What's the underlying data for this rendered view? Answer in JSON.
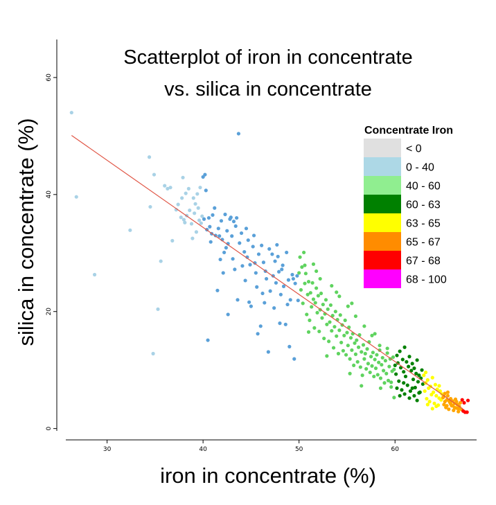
{
  "chart_data": {
    "type": "scatter",
    "title_lines": [
      "Scatterplot of iron in concentrate",
      "vs. silica in concentrate"
    ],
    "xlabel": "iron in concentrate (%)",
    "ylabel": "silica in concentrate (%)",
    "xlim": [
      25.7,
      68.5
    ],
    "ylim": [
      -0.4,
      66.5
    ],
    "x_ticks": [
      30,
      40,
      50,
      60
    ],
    "y_ticks": [
      0,
      20,
      40,
      60
    ],
    "grid": false,
    "legend": {
      "title": "Concentrate Iron",
      "placement": "top-right",
      "entries": [
        {
          "label": "< 0",
          "color": "#e0e0e0"
        },
        {
          "label": "0 - 40",
          "color": "#add8e6"
        },
        {
          "label": "40 - 60",
          "color": "#90ee90"
        },
        {
          "label": "60 - 63",
          "color": "#008000"
        },
        {
          "label": "63 - 65",
          "color": "#ffff00"
        },
        {
          "label": "65 - 67",
          "color": "#ff8c00"
        },
        {
          "label": "67 - 68",
          "color": "#ff0000"
        },
        {
          "label": "68 - 100",
          "color": "#ff00ff"
        }
      ]
    },
    "point_colors": {
      "0-40": "#a9d2e6",
      "40-50": "#5aa0d8",
      "50-60": "#5fd35f",
      "60-63": "#008000",
      "63-65": "#ffff00",
      "65-67": "#ffa500",
      "67-68": "#ff0000"
    },
    "trend_line": {
      "color": "#e05545",
      "x": [
        26.3,
        67.1
      ],
      "y": [
        50.1,
        3.3
      ]
    },
    "points": [
      [
        26.3,
        54.0
      ],
      [
        26.8,
        39.6
      ],
      [
        28.7,
        26.3
      ],
      [
        32.4,
        33.9
      ],
      [
        34.4,
        46.4
      ],
      [
        34.5,
        37.9
      ],
      [
        34.8,
        12.8
      ],
      [
        35.3,
        20.4
      ],
      [
        35.6,
        28.6
      ],
      [
        34.9,
        43.4
      ],
      [
        36.0,
        41.5
      ],
      [
        36.3,
        41.0
      ],
      [
        36.6,
        41.2
      ],
      [
        36.8,
        32.1
      ],
      [
        37.4,
        38.3
      ],
      [
        37.7,
        36.1
      ],
      [
        37.8,
        39.4
      ],
      [
        37.9,
        42.9
      ],
      [
        38.0,
        35.7
      ],
      [
        38.1,
        35.2
      ],
      [
        38.2,
        40.2
      ],
      [
        38.3,
        36.4
      ],
      [
        38.5,
        41.0
      ],
      [
        38.8,
        35.0
      ],
      [
        38.9,
        32.5
      ],
      [
        39.0,
        39.4
      ],
      [
        39.1,
        36.8
      ],
      [
        39.2,
        38.4
      ],
      [
        39.5,
        37.7
      ],
      [
        39.6,
        35.6
      ],
      [
        39.8,
        35.1
      ],
      [
        39.9,
        36.3
      ],
      [
        39.4,
        40.1
      ],
      [
        38.6,
        37.3
      ],
      [
        37.2,
        37.4
      ],
      [
        39.7,
        41.2
      ],
      [
        39.3,
        33.6
      ],
      [
        40.1,
        35.8
      ],
      [
        40.2,
        43.4
      ],
      [
        40.3,
        40.7
      ],
      [
        40.4,
        34.0
      ],
      [
        40.5,
        15.1
      ],
      [
        40.8,
        31.9
      ],
      [
        41.0,
        36.5
      ],
      [
        41.2,
        37.7
      ],
      [
        41.3,
        33.0
      ],
      [
        41.5,
        23.6
      ],
      [
        41.6,
        34.2
      ],
      [
        41.8,
        28.9
      ],
      [
        41.9,
        35.5
      ],
      [
        42.0,
        32.3
      ],
      [
        42.1,
        26.6
      ],
      [
        42.2,
        30.1
      ],
      [
        42.3,
        36.6
      ],
      [
        42.5,
        33.8
      ],
      [
        42.6,
        31.6
      ],
      [
        42.8,
        35.8
      ],
      [
        43.0,
        32.9
      ],
      [
        43.1,
        29.0
      ],
      [
        43.3,
        27.2
      ],
      [
        43.4,
        34.6
      ],
      [
        43.5,
        36.0
      ],
      [
        43.7,
        50.4
      ],
      [
        43.8,
        31.7
      ],
      [
        44.0,
        33.4
      ],
      [
        44.1,
        27.8
      ],
      [
        44.3,
        30.2
      ],
      [
        44.4,
        25.3
      ],
      [
        44.5,
        34.2
      ],
      [
        44.7,
        32.2
      ],
      [
        44.9,
        28.0
      ],
      [
        45.0,
        20.9
      ],
      [
        45.2,
        31.1
      ],
      [
        45.3,
        33.0
      ],
      [
        45.5,
        26.6
      ],
      [
        45.6,
        24.2
      ],
      [
        45.8,
        29.8
      ],
      [
        46.0,
        17.5
      ],
      [
        46.1,
        31.3
      ],
      [
        46.3,
        28.4
      ],
      [
        46.4,
        21.5
      ],
      [
        46.6,
        25.6
      ],
      [
        46.8,
        13.1
      ],
      [
        46.9,
        30.7
      ],
      [
        47.0,
        23.5
      ],
      [
        47.2,
        29.8
      ],
      [
        47.3,
        26.1
      ],
      [
        47.5,
        28.6
      ],
      [
        47.6,
        24.9
      ],
      [
        47.8,
        29.4
      ],
      [
        48.0,
        18.0
      ],
      [
        48.1,
        22.9
      ],
      [
        48.2,
        27.2
      ],
      [
        48.4,
        24.3
      ],
      [
        48.6,
        17.8
      ],
      [
        48.7,
        30.1
      ],
      [
        48.9,
        25.4
      ],
      [
        49.0,
        14.0
      ],
      [
        49.1,
        22.0
      ],
      [
        49.3,
        26.3
      ],
      [
        49.5,
        11.9
      ],
      [
        49.6,
        24.8
      ],
      [
        49.8,
        26.1
      ],
      [
        50.0,
        26.6
      ],
      [
        49.9,
        21.9
      ],
      [
        42.6,
        19.5
      ],
      [
        44.8,
        21.6
      ],
      [
        43.6,
        22.0
      ],
      [
        45.7,
        16.2
      ],
      [
        47.9,
        26.8
      ],
      [
        48.3,
        27.9
      ],
      [
        41.7,
        32.9
      ],
      [
        42.9,
        36.1
      ],
      [
        44.6,
        29.3
      ],
      [
        46.5,
        26.9
      ],
      [
        47.4,
        20.6
      ],
      [
        48.8,
        21.2
      ],
      [
        40.6,
        36.0
      ],
      [
        40.7,
        34.5
      ],
      [
        43.2,
        35.4
      ],
      [
        45.4,
        28.3
      ],
      [
        46.2,
        23.1
      ],
      [
        47.7,
        31.4
      ],
      [
        49.4,
        25.6
      ],
      [
        40.0,
        43.0
      ],
      [
        40.9,
        33.3
      ],
      [
        42.4,
        30.9
      ],
      [
        50.1,
        29.3
      ],
      [
        50.2,
        23.7
      ],
      [
        50.3,
        27.6
      ],
      [
        50.4,
        21.4
      ],
      [
        50.5,
        30.1
      ],
      [
        50.6,
        24.8
      ],
      [
        50.7,
        26.5
      ],
      [
        50.8,
        19.5
      ],
      [
        50.9,
        22.9
      ],
      [
        51.0,
        25.1
      ],
      [
        51.1,
        18.5
      ],
      [
        51.2,
        23.2
      ],
      [
        51.3,
        20.8
      ],
      [
        51.4,
        24.9
      ],
      [
        51.5,
        22.1
      ],
      [
        51.6,
        17.2
      ],
      [
        51.7,
        21.5
      ],
      [
        51.8,
        24.0
      ],
      [
        51.9,
        19.8
      ],
      [
        52.0,
        22.7
      ],
      [
        52.1,
        16.6
      ],
      [
        52.2,
        20.3
      ],
      [
        52.3,
        23.1
      ],
      [
        52.4,
        18.9
      ],
      [
        52.5,
        21.2
      ],
      [
        52.6,
        15.4
      ],
      [
        52.7,
        19.6
      ],
      [
        52.8,
        22.0
      ],
      [
        52.9,
        17.8
      ],
      [
        53.0,
        20.4
      ],
      [
        53.1,
        14.9
      ],
      [
        53.2,
        18.2
      ],
      [
        53.3,
        21.1
      ],
      [
        53.4,
        16.7
      ],
      [
        53.5,
        19.3
      ],
      [
        53.6,
        13.8
      ],
      [
        53.7,
        17.4
      ],
      [
        53.8,
        20.0
      ],
      [
        53.9,
        15.8
      ],
      [
        54.0,
        18.6
      ],
      [
        54.1,
        12.8
      ],
      [
        54.2,
        16.8
      ],
      [
        54.3,
        19.4
      ],
      [
        54.4,
        14.7
      ],
      [
        54.5,
        17.7
      ],
      [
        54.6,
        13.3
      ],
      [
        54.7,
        15.9
      ],
      [
        54.8,
        18.5
      ],
      [
        54.9,
        12.6
      ],
      [
        55.0,
        16.4
      ],
      [
        55.1,
        14.2
      ],
      [
        55.2,
        17.3
      ],
      [
        55.3,
        11.9
      ],
      [
        55.4,
        15.5
      ],
      [
        55.5,
        13.4
      ],
      [
        55.6,
        16.2
      ],
      [
        55.7,
        10.8
      ],
      [
        55.8,
        14.6
      ],
      [
        55.9,
        12.7
      ],
      [
        56.0,
        15.1
      ],
      [
        56.1,
        11.4
      ],
      [
        56.2,
        13.9
      ],
      [
        56.3,
        16.0
      ],
      [
        56.4,
        10.5
      ],
      [
        56.5,
        13.1
      ],
      [
        56.6,
        9.1
      ],
      [
        56.7,
        14.3
      ],
      [
        56.8,
        11.9
      ],
      [
        56.9,
        12.8
      ],
      [
        57.0,
        10.2
      ],
      [
        57.1,
        13.6
      ],
      [
        57.2,
        11.1
      ],
      [
        57.3,
        14.8
      ],
      [
        57.4,
        9.6
      ],
      [
        57.5,
        12.3
      ],
      [
        57.6,
        10.7
      ],
      [
        57.7,
        13.0
      ],
      [
        57.8,
        8.9
      ],
      [
        57.9,
        11.8
      ],
      [
        58.0,
        10.3
      ],
      [
        58.1,
        12.6
      ],
      [
        58.2,
        9.2
      ],
      [
        58.3,
        11.3
      ],
      [
        58.4,
        13.4
      ],
      [
        58.5,
        8.6
      ],
      [
        58.6,
        10.9
      ],
      [
        58.7,
        12.1
      ],
      [
        58.8,
        9.9
      ],
      [
        58.9,
        7.8
      ],
      [
        59.0,
        11.6
      ],
      [
        59.1,
        9.4
      ],
      [
        59.2,
        12.9
      ],
      [
        59.3,
        8.2
      ],
      [
        59.4,
        10.6
      ],
      [
        59.5,
        11.9
      ],
      [
        59.6,
        7.1
      ],
      [
        59.7,
        9.8
      ],
      [
        59.8,
        12.2
      ],
      [
        59.9,
        10.1
      ],
      [
        51.5,
        28.1
      ],
      [
        51.8,
        26.9
      ],
      [
        52.2,
        25.6
      ],
      [
        50.6,
        27.9
      ],
      [
        53.4,
        24.4
      ],
      [
        54.2,
        22.6
      ],
      [
        55.1,
        20.9
      ],
      [
        55.9,
        19.2
      ],
      [
        56.8,
        17.5
      ],
      [
        57.6,
        15.9
      ],
      [
        58.4,
        14.2
      ],
      [
        59.2,
        13.7
      ],
      [
        52.9,
        12.4
      ],
      [
        55.3,
        9.4
      ],
      [
        56.5,
        7.3
      ],
      [
        58.5,
        6.9
      ],
      [
        59.6,
        7.9
      ],
      [
        51.0,
        16.5
      ],
      [
        53.9,
        23.3
      ],
      [
        57.9,
        16.2
      ],
      [
        55.5,
        21.4
      ],
      [
        60.0,
        10.8
      ],
      [
        60.1,
        9.3
      ],
      [
        60.2,
        12.5
      ],
      [
        60.3,
        11.2
      ],
      [
        60.4,
        8.1
      ],
      [
        60.5,
        13.2
      ],
      [
        60.6,
        10.4
      ],
      [
        60.7,
        6.6
      ],
      [
        60.8,
        11.8
      ],
      [
        60.9,
        9.7
      ],
      [
        61.0,
        13.9
      ],
      [
        61.1,
        8.9
      ],
      [
        61.2,
        11.4
      ],
      [
        61.3,
        7.4
      ],
      [
        61.4,
        10.6
      ],
      [
        61.5,
        12.3
      ],
      [
        61.6,
        6.4
      ],
      [
        61.7,
        9.9
      ],
      [
        61.8,
        11.1
      ],
      [
        61.9,
        8.4
      ],
      [
        62.0,
        10.3
      ],
      [
        62.1,
        7.0
      ],
      [
        62.2,
        9.4
      ],
      [
        62.3,
        11.7
      ],
      [
        62.4,
        8.0
      ],
      [
        62.5,
        9.1
      ],
      [
        62.6,
        6.2
      ],
      [
        62.7,
        8.6
      ],
      [
        62.8,
        10.0
      ],
      [
        62.9,
        7.6
      ],
      [
        60.5,
        5.6
      ],
      [
        61.0,
        5.9
      ],
      [
        61.5,
        5.2
      ],
      [
        62.0,
        5.6
      ],
      [
        62.5,
        6.1
      ],
      [
        60.2,
        6.9
      ],
      [
        59.9,
        5.3
      ],
      [
        61.8,
        6.9
      ],
      [
        62.3,
        4.8
      ],
      [
        60.9,
        7.8
      ],
      [
        63.0,
        9.1
      ],
      [
        63.1,
        6.4
      ],
      [
        63.2,
        7.8
      ],
      [
        63.3,
        5.1
      ],
      [
        63.4,
        8.3
      ],
      [
        63.5,
        6.9
      ],
      [
        63.6,
        4.6
      ],
      [
        63.7,
        7.2
      ],
      [
        63.8,
        5.8
      ],
      [
        63.9,
        8.7
      ],
      [
        64.0,
        6.2
      ],
      [
        64.1,
        4.3
      ],
      [
        64.2,
        7.5
      ],
      [
        64.3,
        5.6
      ],
      [
        64.4,
        6.7
      ],
      [
        64.5,
        4.0
      ],
      [
        64.6,
        5.2
      ],
      [
        64.7,
        6.4
      ],
      [
        64.8,
        4.9
      ],
      [
        64.9,
        5.9
      ],
      [
        63.9,
        3.4
      ],
      [
        64.3,
        3.8
      ],
      [
        63.4,
        4.1
      ],
      [
        64.6,
        7.3
      ],
      [
        63.2,
        9.6
      ],
      [
        65.0,
        5.3
      ],
      [
        65.1,
        4.1
      ],
      [
        65.2,
        6.0
      ],
      [
        65.3,
        3.6
      ],
      [
        65.4,
        4.9
      ],
      [
        65.5,
        5.6
      ],
      [
        65.6,
        3.3
      ],
      [
        65.7,
        4.5
      ],
      [
        65.8,
        5.1
      ],
      [
        65.9,
        3.9
      ],
      [
        66.0,
        4.7
      ],
      [
        66.1,
        3.1
      ],
      [
        66.2,
        4.3
      ],
      [
        66.3,
        5.0
      ],
      [
        66.4,
        3.5
      ],
      [
        66.5,
        4.1
      ],
      [
        66.6,
        2.9
      ],
      [
        66.7,
        3.8
      ],
      [
        66.8,
        4.4
      ],
      [
        66.9,
        3.3
      ],
      [
        65.2,
        4.6
      ],
      [
        65.6,
        4.8
      ],
      [
        66.0,
        3.9
      ],
      [
        66.4,
        4.6
      ],
      [
        65.4,
        3.9
      ],
      [
        65.8,
        4.2
      ],
      [
        66.2,
        3.6
      ],
      [
        66.6,
        3.4
      ],
      [
        65.1,
        5.5
      ],
      [
        65.5,
        6.2
      ],
      [
        67.1,
        3.0
      ],
      [
        67.3,
        2.8
      ],
      [
        67.5,
        2.8
      ],
      [
        67.2,
        4.4
      ],
      [
        67.6,
        4.8
      ],
      [
        67.0,
        4.9
      ]
    ]
  }
}
